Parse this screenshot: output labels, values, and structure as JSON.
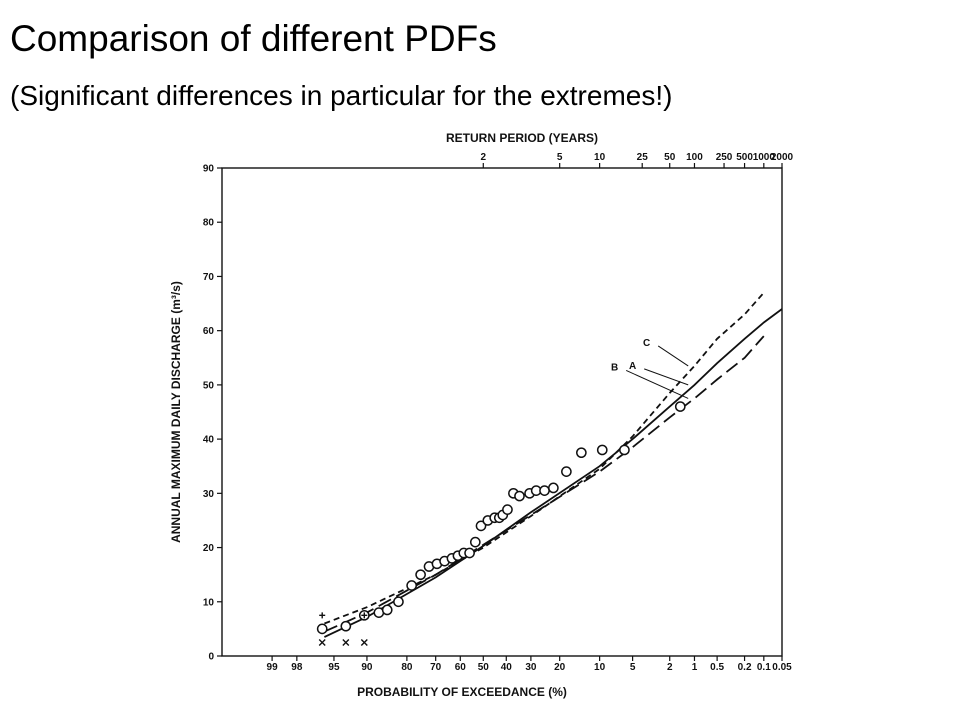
{
  "slide": {
    "title": "Comparison of different PDFs",
    "subtitle": "(Significant differences in particular for the extremes!)"
  },
  "chart_data": {
    "type": "line",
    "title": "",
    "xlabel": "PROBABILITY OF EXCEEDANCE (%)",
    "x2label": "RETURN PERIOD (YEARS)",
    "ylabel": "ANNUAL MAXIMUM DAILY DISCHARGE (m³/s)",
    "ylim": [
      0,
      90
    ],
    "yticks": [
      0,
      10,
      20,
      30,
      40,
      50,
      60,
      70,
      80,
      90
    ],
    "xscale": "normal-probability",
    "xlim": [
      99.8,
      0.05
    ],
    "xticks": [
      99,
      98,
      95,
      90,
      80,
      70,
      60,
      50,
      40,
      30,
      20,
      10,
      5,
      2,
      1,
      0.5,
      0.2,
      0.1,
      0.05
    ],
    "xtick_labels": [
      "99",
      "98",
      "95",
      "90",
      "80",
      "70",
      "60",
      "50",
      "40",
      "30",
      "20",
      "10",
      "5",
      "2",
      "1",
      "0.5",
      "0.2",
      "0.1",
      "0.05"
    ],
    "x2ticks": [
      2,
      5,
      10,
      25,
      50,
      100,
      250,
      500,
      1000,
      2000
    ],
    "x2tick_labels": [
      "2",
      "5",
      "10",
      "25",
      "50",
      "100",
      "250",
      "500",
      "1000",
      "2000"
    ],
    "grid": false,
    "series": [
      {
        "name": "A",
        "style": "solid",
        "x": [
          96,
          90,
          70,
          50,
          30,
          10,
          5,
          2,
          1,
          0.5,
          0.2,
          0.1,
          0.05
        ],
        "y": [
          3.5,
          7.2,
          14.5,
          20.3,
          26.5,
          35.0,
          40.0,
          46.0,
          50.0,
          54.0,
          58.5,
          61.5,
          64.0
        ]
      },
      {
        "name": "B",
        "style": "long-dash",
        "x": [
          96,
          90,
          70,
          50,
          30,
          10,
          5,
          2,
          1,
          0.5,
          0.2,
          0.1
        ],
        "y": [
          4.5,
          8.0,
          15.0,
          20.5,
          26.0,
          34.0,
          38.5,
          44.0,
          47.5,
          51.0,
          55.0,
          59.0
        ]
      },
      {
        "name": "C",
        "style": "short-dash",
        "x": [
          96,
          90,
          70,
          50,
          30,
          10,
          5,
          2,
          1,
          0.5,
          0.2,
          0.1
        ],
        "y": [
          6.0,
          9.0,
          15.0,
          20.0,
          25.8,
          34.5,
          40.5,
          48.5,
          53.5,
          58.5,
          63.0,
          67.0
        ]
      }
    ],
    "observations": {
      "marker": "circle",
      "x": [
        96.2,
        93.5,
        90.5,
        87.5,
        85.5,
        82.5,
        78.5,
        75.5,
        72.5,
        69.5,
        66.5,
        63.5,
        61.0,
        58.5,
        56.0,
        53.5,
        51.0,
        48.0,
        45.0,
        43.0,
        41.5,
        39.5,
        37.0,
        34.5,
        30.5,
        28.0,
        25.0,
        22.0,
        18.0,
        14.0,
        9.5,
        6.0,
        1.5
      ],
      "y": [
        5.0,
        5.5,
        7.5,
        8.0,
        8.5,
        10.0,
        13.0,
        15.0,
        16.5,
        17.0,
        17.5,
        18.0,
        18.5,
        19.0,
        19.0,
        21.0,
        24.0,
        25.0,
        25.5,
        25.5,
        26.0,
        27.0,
        30.0,
        29.5,
        30.0,
        30.5,
        30.5,
        31.0,
        34.0,
        37.5,
        38.0,
        38.0,
        46.0
      ]
    },
    "extra_markers": [
      {
        "marker": "plus",
        "x": [
          96.2,
          90.5
        ],
        "y": [
          7.5,
          7.5
        ]
      },
      {
        "marker": "x",
        "x": [
          96.2,
          93.5,
          90.5
        ],
        "y": [
          2.5,
          2.5,
          2.5
        ]
      }
    ]
  }
}
